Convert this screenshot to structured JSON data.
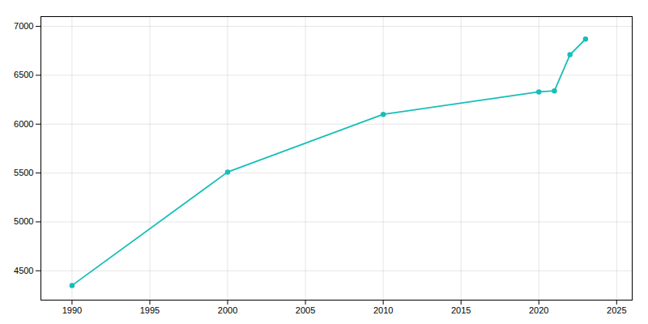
{
  "chart_data": {
    "type": "line",
    "x": [
      1990,
      2000,
      2010,
      2020,
      2021,
      2022,
      2023
    ],
    "values": [
      4350,
      5510,
      6100,
      6330,
      6340,
      6710,
      6870
    ],
    "color": "#17BEB8",
    "marker": "circle",
    "xlim": [
      1988,
      2026
    ],
    "ylim": [
      4200,
      7100
    ],
    "xticks": [
      1990,
      1995,
      2000,
      2005,
      2010,
      2015,
      2020,
      2025
    ],
    "yticks": [
      4500,
      5000,
      5500,
      6000,
      6500,
      7000
    ],
    "grid": true
  }
}
